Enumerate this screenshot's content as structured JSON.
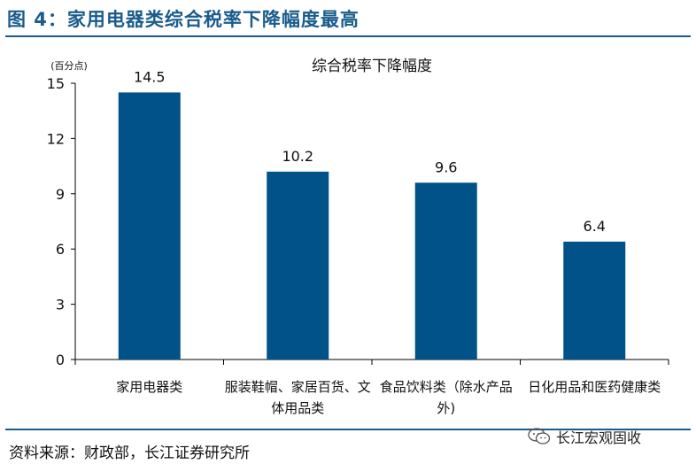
{
  "figure_title": "图 4：家用电器类综合税率下降幅度最高",
  "source_text": "资料来源：财政部，长江证券研究所",
  "watermark_text": "长江宏观固收",
  "watermark_icon": "wechat-icon",
  "colors": {
    "bar": "#005288",
    "title": "#1a5c8c",
    "axis": "#000000"
  },
  "chart_data": {
    "type": "bar",
    "title": "综合税率下降幅度",
    "unit_label": "(百分点)",
    "categories": [
      [
        "家用电器类"
      ],
      [
        "服装鞋帽、家居百货、文",
        "体用品类"
      ],
      [
        "食品饮料类（除水产品",
        "外)"
      ],
      [
        "日化用品和医药健康类"
      ]
    ],
    "values": [
      14.5,
      10.2,
      9.6,
      6.4
    ],
    "data_labels": [
      "14.5",
      "10.2",
      "9.6",
      "6.4"
    ],
    "ylim": [
      0,
      15
    ],
    "yticks": [
      0,
      3,
      6,
      9,
      12,
      15
    ],
    "grid": false,
    "legend": "none"
  }
}
